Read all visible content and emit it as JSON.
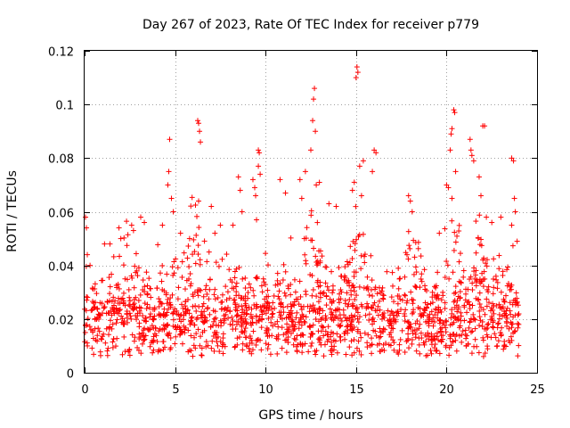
{
  "chart_data": {
    "type": "scatter",
    "title": "Day 267 of 2023, Rate Of TEC Index for receiver p779",
    "xlabel": "GPS time / hours",
    "ylabel": "ROTI / TECUs",
    "xlim": [
      0,
      25
    ],
    "ylim": [
      0,
      0.12
    ],
    "x_ticks": [
      0,
      5,
      10,
      15,
      20,
      25
    ],
    "x_tick_labels": [
      "0",
      "5",
      "10",
      "15",
      "20",
      "25"
    ],
    "y_ticks": [
      0,
      0.02,
      0.04,
      0.06,
      0.08,
      0.1,
      0.12
    ],
    "y_tick_labels": [
      "0",
      "0.02",
      "0.04",
      "0.06",
      "0.08",
      "0.1",
      "0.12"
    ],
    "grid": true,
    "marker": "plus",
    "color": "#ff0000",
    "points": [
      [
        0.05,
        0.058
      ],
      [
        0.1,
        0.054
      ],
      [
        0.15,
        0.044
      ],
      [
        0.3,
        0.04
      ],
      [
        1.1,
        0.048
      ],
      [
        1.4,
        0.048
      ],
      [
        1.9,
        0.054
      ],
      [
        2.0,
        0.05
      ],
      [
        2.6,
        0.055
      ],
      [
        2.7,
        0.053
      ],
      [
        3.1,
        0.058
      ],
      [
        3.3,
        0.056
      ],
      [
        4.3,
        0.055
      ],
      [
        4.6,
        0.07
      ],
      [
        4.65,
        0.075
      ],
      [
        4.7,
        0.087
      ],
      [
        4.8,
        0.065
      ],
      [
        4.9,
        0.06
      ],
      [
        5.3,
        0.052
      ],
      [
        5.8,
        0.05
      ],
      [
        6.25,
        0.094
      ],
      [
        6.3,
        0.093
      ],
      [
        6.35,
        0.09
      ],
      [
        6.4,
        0.086
      ],
      [
        6.3,
        0.064
      ],
      [
        7.0,
        0.062
      ],
      [
        7.2,
        0.052
      ],
      [
        7.5,
        0.055
      ],
      [
        8.2,
        0.055
      ],
      [
        8.5,
        0.073
      ],
      [
        8.6,
        0.068
      ],
      [
        8.7,
        0.06
      ],
      [
        9.3,
        0.072
      ],
      [
        9.4,
        0.069
      ],
      [
        9.45,
        0.066
      ],
      [
        9.6,
        0.083
      ],
      [
        9.65,
        0.082
      ],
      [
        9.6,
        0.077
      ],
      [
        9.7,
        0.074
      ],
      [
        9.5,
        0.057
      ],
      [
        10.8,
        0.072
      ],
      [
        11.1,
        0.067
      ],
      [
        11.9,
        0.072
      ],
      [
        12.0,
        0.065
      ],
      [
        12.2,
        0.075
      ],
      [
        12.5,
        0.083
      ],
      [
        12.6,
        0.094
      ],
      [
        12.65,
        0.102
      ],
      [
        12.7,
        0.106
      ],
      [
        12.75,
        0.09
      ],
      [
        12.8,
        0.07
      ],
      [
        13.5,
        0.063
      ],
      [
        13.9,
        0.062
      ],
      [
        14.8,
        0.068
      ],
      [
        14.9,
        0.071
      ],
      [
        15.0,
        0.11
      ],
      [
        15.05,
        0.114
      ],
      [
        15.1,
        0.112
      ],
      [
        15.2,
        0.077
      ],
      [
        15.4,
        0.079
      ],
      [
        15.3,
        0.066
      ],
      [
        15.9,
        0.075
      ],
      [
        16.0,
        0.083
      ],
      [
        16.1,
        0.082
      ],
      [
        17.9,
        0.066
      ],
      [
        18.0,
        0.064
      ],
      [
        18.1,
        0.06
      ],
      [
        19.6,
        0.052
      ],
      [
        20.0,
        0.07
      ],
      [
        20.1,
        0.069
      ],
      [
        20.2,
        0.083
      ],
      [
        20.25,
        0.089
      ],
      [
        20.3,
        0.091
      ],
      [
        20.4,
        0.098
      ],
      [
        20.45,
        0.097
      ],
      [
        20.5,
        0.075
      ],
      [
        20.3,
        0.065
      ],
      [
        21.3,
        0.087
      ],
      [
        21.35,
        0.083
      ],
      [
        21.4,
        0.081
      ],
      [
        21.5,
        0.079
      ],
      [
        21.8,
        0.073
      ],
      [
        21.9,
        0.066
      ],
      [
        22.0,
        0.092
      ],
      [
        22.1,
        0.092
      ],
      [
        22.2,
        0.058
      ],
      [
        22.5,
        0.056
      ],
      [
        23.0,
        0.058
      ],
      [
        23.6,
        0.08
      ],
      [
        23.7,
        0.079
      ],
      [
        23.75,
        0.065
      ],
      [
        23.8,
        0.06
      ],
      [
        23.6,
        0.055
      ],
      [
        23.9,
        0.049
      ]
    ]
  }
}
